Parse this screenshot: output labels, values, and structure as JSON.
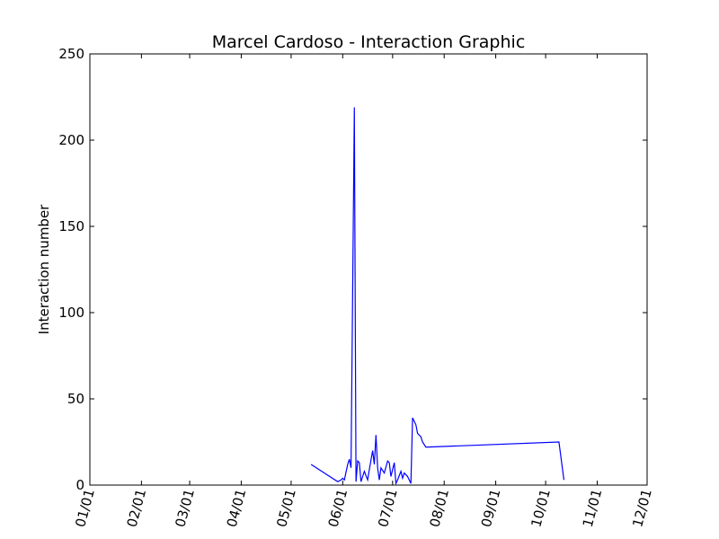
{
  "chart_data": {
    "type": "line",
    "title": "Marcel Cardoso - Interaction Graphic",
    "xlabel": "",
    "ylabel": "Interaction number",
    "xlim": [
      "2000-01-01",
      "2000-12-01"
    ],
    "ylim": [
      0,
      250
    ],
    "x_ticks": [
      {
        "date": "2000-01-01",
        "label": "01/01"
      },
      {
        "date": "2000-02-01",
        "label": "02/01"
      },
      {
        "date": "2000-03-01",
        "label": "03/01"
      },
      {
        "date": "2000-04-01",
        "label": "04/01"
      },
      {
        "date": "2000-05-01",
        "label": "05/01"
      },
      {
        "date": "2000-06-01",
        "label": "06/01"
      },
      {
        "date": "2000-07-01",
        "label": "07/01"
      },
      {
        "date": "2000-08-01",
        "label": "08/01"
      },
      {
        "date": "2000-09-01",
        "label": "09/01"
      },
      {
        "date": "2000-10-01",
        "label": "10/01"
      },
      {
        "date": "2000-11-01",
        "label": "11/01"
      },
      {
        "date": "2000-12-01",
        "label": "12/01"
      }
    ],
    "y_ticks": [
      {
        "value": 0,
        "label": "0"
      },
      {
        "value": 50,
        "label": "50"
      },
      {
        "value": 100,
        "label": "100"
      },
      {
        "value": 150,
        "label": "150"
      },
      {
        "value": 200,
        "label": "200"
      },
      {
        "value": 250,
        "label": "250"
      }
    ],
    "grid": false,
    "series": [
      {
        "color": "#0000ff",
        "x": [
          "2000-05-13",
          "2000-05-29",
          "2000-05-31",
          "2000-06-01",
          "2000-06-02",
          "2000-06-04",
          "2000-06-05",
          "2000-06-06",
          "2000-06-08",
          "2000-06-09",
          "2000-06-10",
          "2000-06-11",
          "2000-06-12",
          "2000-06-13",
          "2000-06-14",
          "2000-06-16",
          "2000-06-17",
          "2000-06-19",
          "2000-06-20",
          "2000-06-21",
          "2000-06-22",
          "2000-06-23",
          "2000-06-24",
          "2000-06-26",
          "2000-06-28",
          "2000-06-29",
          "2000-06-30",
          "2000-07-02",
          "2000-07-03",
          "2000-07-04",
          "2000-07-06",
          "2000-07-07",
          "2000-07-08",
          "2000-07-10",
          "2000-07-11",
          "2000-07-12",
          "2000-07-13",
          "2000-07-15",
          "2000-07-16",
          "2000-07-18",
          "2000-07-19",
          "2000-07-21",
          "2000-10-09",
          "2000-10-12"
        ],
        "y": [
          12,
          2,
          3,
          4,
          3,
          12,
          15,
          10,
          219,
          2,
          14,
          13,
          2,
          5,
          8,
          3,
          9,
          20,
          12,
          29,
          10,
          3,
          10,
          7,
          14,
          13,
          5,
          13,
          1,
          3,
          8,
          4,
          7,
          5,
          3,
          1,
          39,
          35,
          30,
          28,
          25,
          22,
          25,
          3
        ]
      }
    ]
  }
}
